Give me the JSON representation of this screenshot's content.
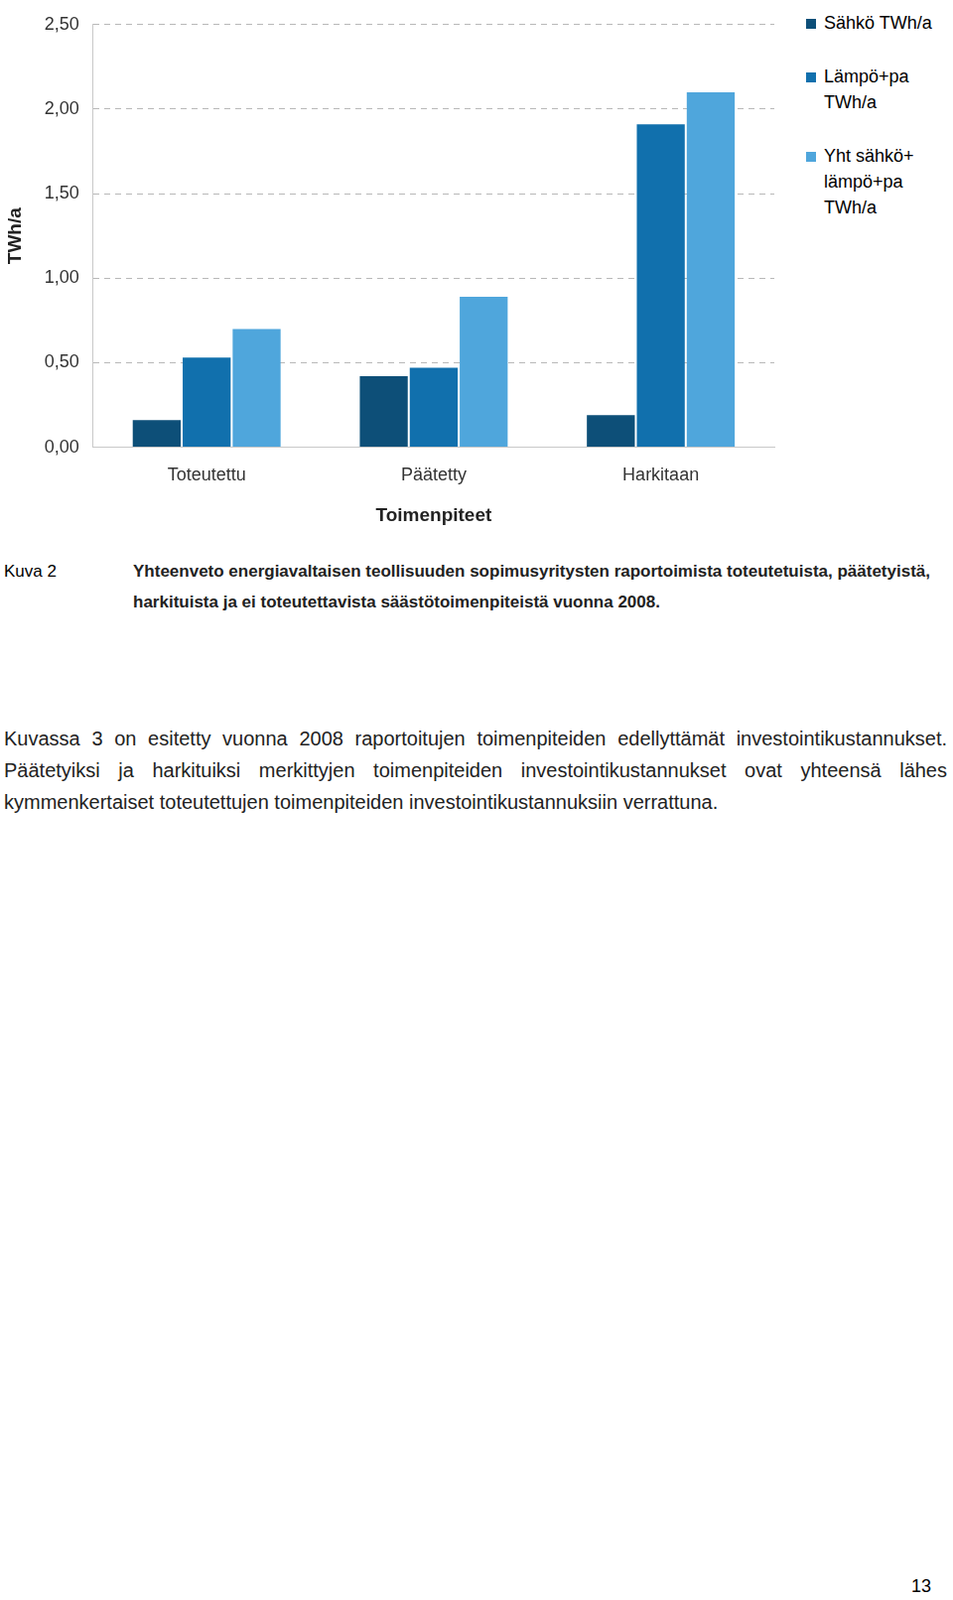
{
  "chart_data": {
    "type": "bar",
    "y_label": "TWh/a",
    "x_label": "Toimenpiteet",
    "categories": [
      "Toteutettu",
      "Päätetty",
      "Harkitaan"
    ],
    "series": [
      {
        "name": "Sähkö TWh/a",
        "color": "#0d4f78",
        "values": [
          0.16,
          0.42,
          0.19
        ]
      },
      {
        "name": "Lämpö+pa TWh/a",
        "color": "#1170ad",
        "values": [
          0.53,
          0.47,
          1.91
        ]
      },
      {
        "name": "Yht sähkö+ lämpö+pa TWh/a",
        "color": "#4fa6dc",
        "values": [
          0.7,
          0.89,
          2.1
        ]
      }
    ],
    "ylim": [
      0,
      2.5
    ],
    "yticks": [
      {
        "value": 0,
        "label": "0,00"
      },
      {
        "value": 0.5,
        "label": "0,50"
      },
      {
        "value": 1,
        "label": "1,00"
      },
      {
        "value": 1.5,
        "label": "1,50"
      },
      {
        "value": 2,
        "label": "2,00"
      },
      {
        "value": 2.5,
        "label": "2,50"
      }
    ],
    "grid": true,
    "legend": "right"
  },
  "caption": {
    "label": "Kuva 2",
    "text": "Yhteenveto energiavaltaisen teollisuuden sopimusyritysten raportoimista toteutetuista, päätetyistä, harkituista ja ei toteutettavista säästötoimenpiteistä vuonna 2008."
  },
  "paragraph": "Kuvassa 3 on esitetty vuonna 2008 raportoitujen toimenpiteiden edellyttämät investointikustannukset. Päätetyiksi ja harkituiksi merkittyjen toimenpiteiden investointikustannukset ovat yhteensä lähes kymmenkertaiset toteutettujen toimenpiteiden investointikustannuksiin verrattuna.",
  "page_number": 13
}
